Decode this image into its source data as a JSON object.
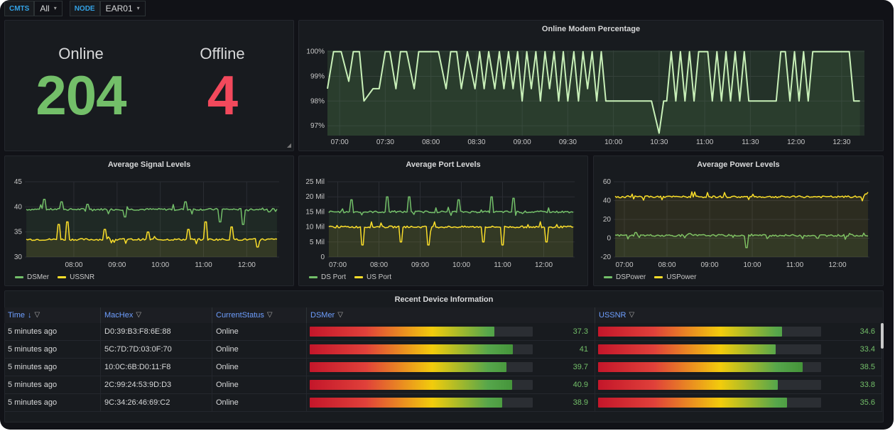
{
  "variables": {
    "cmts_label": "CMTS",
    "cmts_value": "All",
    "node_label": "NODE",
    "node_value": "EAR01"
  },
  "stats": {
    "online_label": "Online",
    "online_value": "204",
    "offline_label": "Offline",
    "offline_value": "4",
    "online_color": "#73bf69",
    "offline_color": "#f2495c"
  },
  "panels": {
    "online_pct_title": "Online Modem Percentage",
    "signal_title": "Average Signal Levels",
    "port_title": "Average Port Levels",
    "power_title": "Average Power Levels",
    "table_title": "Recent Device Information"
  },
  "chart_data": [
    {
      "type": "line",
      "title": "Online Modem Percentage",
      "y_ticks": [
        "100%",
        "99%",
        "98%",
        "97%"
      ],
      "ylim": [
        96.6,
        100.05
      ],
      "x_ticks": [
        "07:00",
        "07:30",
        "08:00",
        "08:30",
        "09:00",
        "09:30",
        "10:00",
        "10:30",
        "11:00",
        "11:30",
        "12:00",
        "12:30"
      ],
      "x_range": [
        "06:52",
        "12:45"
      ],
      "series": [
        {
          "name": "",
          "color": "#c8f0b8",
          "x": [
            "06:52",
            "06:56",
            "07:01",
            "07:06",
            "07:09",
            "07:13",
            "07:16",
            "07:22",
            "07:26",
            "07:30",
            "07:33",
            "07:37",
            "07:40",
            "07:44",
            "07:49",
            "07:52",
            "07:56",
            "08:00",
            "08:05",
            "08:10",
            "08:13",
            "08:17",
            "08:20",
            "08:24",
            "08:29",
            "08:32",
            "08:35",
            "08:38",
            "08:42",
            "08:45",
            "08:48",
            "08:51",
            "08:54",
            "08:57",
            "09:00",
            "09:03",
            "09:06",
            "09:09",
            "09:12",
            "09:15",
            "09:18",
            "09:21",
            "09:24",
            "09:27",
            "09:30",
            "09:34",
            "09:37",
            "09:40",
            "09:43",
            "09:46",
            "09:49",
            "09:52",
            "09:55",
            "09:58",
            "10:01",
            "10:04",
            "10:07",
            "10:10",
            "10:13",
            "10:16",
            "10:19",
            "10:22",
            "10:25",
            "10:30",
            "10:33",
            "10:35",
            "10:38",
            "10:41",
            "10:44",
            "10:47",
            "10:50",
            "10:53",
            "10:56",
            "10:59",
            "11:02",
            "11:05",
            "11:08",
            "11:11",
            "11:14",
            "11:17",
            "11:20",
            "11:23",
            "11:26",
            "11:29",
            "11:32",
            "11:35",
            "11:38",
            "11:41",
            "11:44",
            "11:47",
            "11:50",
            "11:53",
            "11:56",
            "11:59",
            "12:02",
            "12:05",
            "12:08",
            "12:11",
            "12:14",
            "12:17",
            "12:20",
            "12:23",
            "12:26",
            "12:29",
            "12:32",
            "12:35",
            "12:38",
            "12:42"
          ],
          "y": [
            98.5,
            100,
            100,
            98.8,
            100,
            100,
            98,
            98.5,
            98.5,
            100,
            100,
            98.5,
            100,
            100,
            98.5,
            100,
            100,
            100,
            100,
            98.5,
            100,
            100,
            98.5,
            100,
            98.5,
            100,
            98.5,
            100,
            98.5,
            100,
            98.5,
            100,
            98.5,
            100,
            98,
            100,
            98.5,
            100,
            98,
            100,
            98.5,
            100,
            98,
            100,
            98,
            100,
            98,
            100,
            98.5,
            100,
            98,
            100,
            98,
            98,
            98,
            98,
            98,
            98,
            98,
            98,
            98,
            98,
            98,
            96.7,
            98,
            98,
            100,
            98,
            100,
            98,
            100,
            98,
            100,
            100,
            100,
            98,
            100,
            98,
            100,
            98,
            100,
            98,
            100,
            98,
            98,
            98,
            98,
            98,
            98,
            98,
            100,
            100,
            98,
            100,
            98,
            100,
            98,
            100,
            100,
            100,
            100,
            100,
            100,
            100,
            100,
            100,
            98,
            98
          ]
        }
      ]
    },
    {
      "type": "line",
      "title": "Average Signal Levels",
      "y_ticks": [
        "45",
        "40",
        "35",
        "30"
      ],
      "ylim": [
        30,
        45
      ],
      "x_ticks": [
        "08:00",
        "09:00",
        "10:00",
        "11:00",
        "12:00"
      ],
      "x_range": [
        "06:52",
        "12:45"
      ],
      "legend": [
        "DSMer",
        "USSNR"
      ],
      "series": [
        {
          "name": "DSMer",
          "color": "#73bf69",
          "base": 39.5,
          "x": [
            "07:20",
            "07:45",
            "08:20",
            "09:10",
            "10:35",
            "11:25",
            "11:55",
            "12:30"
          ],
          "y": [
            41.5,
            41,
            40.5,
            38,
            41,
            37,
            36.5,
            39
          ]
        },
        {
          "name": "USSNR",
          "color": "#fade2a",
          "base": 33.5,
          "x": [
            "07:40",
            "07:50",
            "08:45",
            "09:45",
            "10:40",
            "11:05",
            "11:40",
            "12:15"
          ],
          "y": [
            36.5,
            37,
            35.5,
            35,
            35.5,
            37,
            36,
            32
          ]
        }
      ]
    },
    {
      "type": "line",
      "title": "Average Port Levels",
      "y_ticks": [
        "25 Mil",
        "20 Mil",
        "15 Mil",
        "10 Mil",
        "5 Mil",
        "0"
      ],
      "ylim": [
        0,
        25
      ],
      "x_ticks": [
        "07:00",
        "08:00",
        "09:00",
        "10:00",
        "11:00",
        "12:00"
      ],
      "x_range": [
        "06:45",
        "12:45"
      ],
      "legend": [
        "DS Port",
        "US Port"
      ],
      "series": [
        {
          "name": "DS Port",
          "color": "#73bf69",
          "base": 15,
          "x": [
            "07:20",
            "08:10",
            "08:45",
            "09:55",
            "10:45",
            "11:15"
          ],
          "y": [
            19,
            20,
            20,
            19,
            20,
            19.5
          ]
        },
        {
          "name": "US Port",
          "color": "#fade2a",
          "base": 10,
          "x": [
            "07:35",
            "08:30",
            "09:10",
            "10:30",
            "11:00",
            "12:05"
          ],
          "y": [
            4,
            5,
            4,
            5,
            4,
            5
          ]
        }
      ]
    },
    {
      "type": "line",
      "title": "Average Power Levels",
      "y_ticks": [
        "60",
        "40",
        "20",
        "0",
        "-20"
      ],
      "ylim": [
        -20,
        60
      ],
      "x_ticks": [
        "07:00",
        "08:00",
        "09:00",
        "10:00",
        "11:00",
        "12:00"
      ],
      "x_range": [
        "06:45",
        "12:45"
      ],
      "legend": [
        "DSPower",
        "USPower"
      ],
      "series": [
        {
          "name": "DSPower",
          "color": "#73bf69",
          "base": 3,
          "x": [
            "07:15",
            "08:30",
            "09:50",
            "11:30"
          ],
          "y": [
            6,
            5,
            -10,
            0
          ]
        },
        {
          "name": "USPower",
          "color": "#fade2a",
          "base": 44,
          "x": [
            "07:30",
            "09:00",
            "12:40"
          ],
          "y": [
            45,
            44,
            47
          ]
        }
      ]
    }
  ],
  "table": {
    "columns": [
      "Time",
      "MacHex",
      "CurrentStatus",
      "DSMer",
      "USSNR"
    ],
    "sort_arrow": "↓",
    "gauge_max_dsmer": 45,
    "gauge_max_ussnr": 42,
    "rows": [
      {
        "time": "5 minutes ago",
        "mac": "D0:39:B3:F8:6E:88",
        "status": "Online",
        "dsmer": 37.3,
        "ussnr": 34.6
      },
      {
        "time": "5 minutes ago",
        "mac": "5C:7D:7D:03:0F:70",
        "status": "Online",
        "dsmer": 41,
        "ussnr": 33.4
      },
      {
        "time": "5 minutes ago",
        "mac": "10:0C:6B:D0:11:F8",
        "status": "Online",
        "dsmer": 39.7,
        "ussnr": 38.5
      },
      {
        "time": "5 minutes ago",
        "mac": "2C:99:24:53:9D:D3",
        "status": "Online",
        "dsmer": 40.9,
        "ussnr": 33.8
      },
      {
        "time": "5 minutes ago",
        "mac": "9C:34:26:46:69:C2",
        "status": "Online",
        "dsmer": 38.9,
        "ussnr": 35.6
      }
    ]
  }
}
